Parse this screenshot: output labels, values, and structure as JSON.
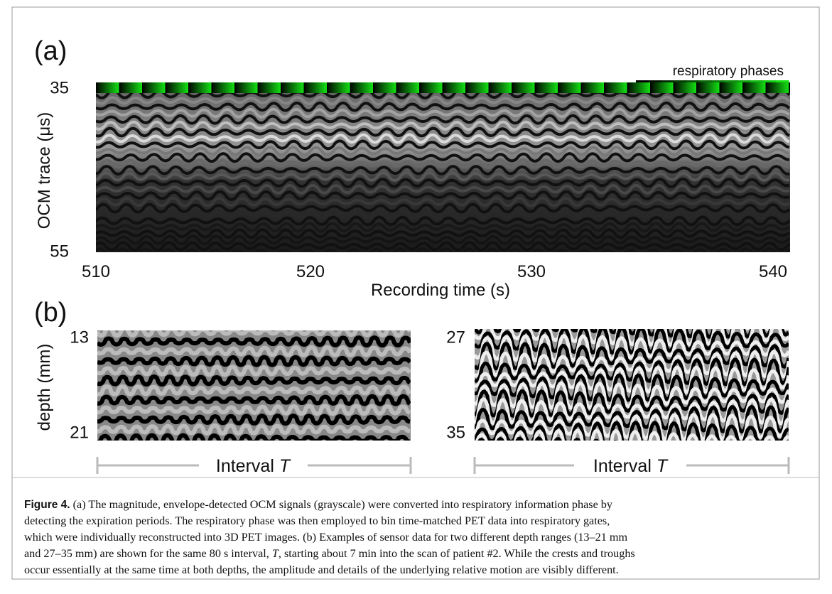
{
  "panel_a": {
    "label": "(a)",
    "colorbar_label": "respiratory phases",
    "y_axis_label": "OCM trace (μs)",
    "y_ticks": [
      "35",
      "55"
    ],
    "x_axis_label": "Recording time (s)",
    "x_ticks": [
      "510",
      "520",
      "530",
      "540"
    ]
  },
  "panel_b": {
    "label": "(b)",
    "y_axis_label": "depth (mm)",
    "left": {
      "y_ticks": [
        "13",
        "21"
      ],
      "interval_label": "Interval",
      "interval_symbol": "T"
    },
    "right": {
      "y_ticks": [
        "27",
        "35"
      ],
      "interval_label": "Interval",
      "interval_symbol": "T"
    }
  },
  "caption": {
    "label": "Figure 4.",
    "lines": [
      "(a) The magnitude, envelope-detected OCM signals (grayscale) were converted into respiratory information phase by",
      "detecting the expiration periods. The respiratory phase was then employed to bin time-matched PET data into respiratory gates,",
      "which were individually reconstructed into 3D PET images. (b) Examples of sensor data for two different depth ranges (13–21 mm",
      [
        "and 27–35 mm) are shown for the same 80 s interval, ",
        "T",
        ", starting about 7 min into the scan of patient #2. While the crests and troughs"
      ],
      "occur essentially at the same time at both depths, the amplitude and details of the underlying relative motion are visibly different."
    ]
  }
}
